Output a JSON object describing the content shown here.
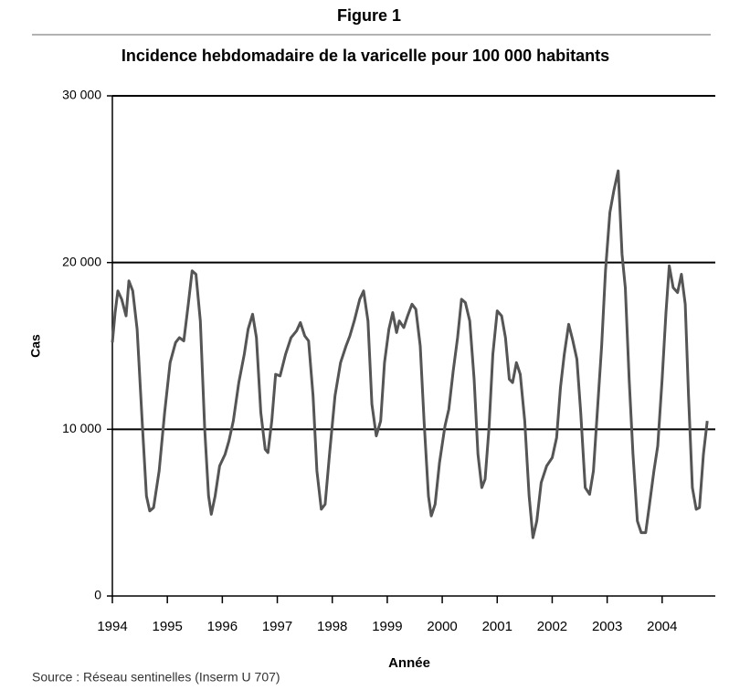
{
  "chart_data": {
    "type": "line",
    "title": "Figure 1",
    "subtitle": "Incidence hebdomadaire de la varicelle pour 100 000 habitants",
    "xlabel": "Année",
    "ylabel": "Cas",
    "source": "Source : Réseau sentinelles (Inserm U 707)",
    "xlim": [
      1994,
      2005
    ],
    "xticks": [
      1994,
      1995,
      1996,
      1997,
      1998,
      1999,
      2000,
      2001,
      2002,
      2003,
      2004
    ],
    "ylim": [
      0,
      30000
    ],
    "yticks": [
      0,
      {
        "value": 10000,
        "label": "10 000"
      },
      {
        "value": 20000,
        "label": "20 000"
      },
      {
        "value": 30000,
        "label": "30 000"
      }
    ],
    "grid": true,
    "x": [
      1994.0,
      1994.05,
      1994.1,
      1994.17,
      1994.25,
      1994.3,
      1994.37,
      1994.45,
      1994.55,
      1994.62,
      1994.68,
      1994.75,
      1994.85,
      1994.95,
      1995.05,
      1995.15,
      1995.22,
      1995.3,
      1995.38,
      1995.45,
      1995.52,
      1995.6,
      1995.68,
      1995.75,
      1995.8,
      1995.87,
      1995.95,
      1996.05,
      1996.12,
      1996.2,
      1996.3,
      1996.4,
      1996.47,
      1996.55,
      1996.62,
      1996.7,
      1996.78,
      1996.83,
      1996.9,
      1996.97,
      1997.05,
      1997.15,
      1997.25,
      1997.35,
      1997.42,
      1997.5,
      1997.57,
      1997.65,
      1997.72,
      1997.8,
      1997.87,
      1997.95,
      1998.05,
      1998.15,
      1998.25,
      1998.32,
      1998.4,
      1998.5,
      1998.57,
      1998.65,
      1998.72,
      1998.8,
      1998.88,
      1998.95,
      1999.03,
      1999.1,
      1999.17,
      1999.22,
      1999.3,
      1999.37,
      1999.45,
      1999.52,
      1999.6,
      1999.67,
      1999.75,
      1999.8,
      1999.87,
      1999.95,
      2000.05,
      2000.12,
      2000.2,
      2000.28,
      2000.35,
      2000.42,
      2000.5,
      2000.58,
      2000.65,
      2000.72,
      2000.78,
      2000.85,
      2000.92,
      2001.0,
      2001.08,
      2001.15,
      2001.22,
      2001.28,
      2001.35,
      2001.42,
      2001.5,
      2001.58,
      2001.65,
      2001.72,
      2001.8,
      2001.9,
      2002.0,
      2002.08,
      2002.15,
      2002.22,
      2002.3,
      2002.37,
      2002.45,
      2002.52,
      2002.6,
      2002.68,
      2002.75,
      2002.82,
      2002.9,
      2002.97,
      2003.05,
      2003.12,
      2003.2,
      2003.27,
      2003.33,
      2003.4,
      2003.47,
      2003.55,
      2003.62,
      2003.7,
      2003.77,
      2003.85,
      2003.92,
      2004.0,
      2004.07,
      2004.13,
      2004.2,
      2004.28,
      2004.35,
      2004.42,
      2004.48,
      2004.55,
      2004.62,
      2004.68,
      2004.75,
      2004.82
    ],
    "series": [
      {
        "name": "Cas",
        "color": "#555555",
        "values": [
          15200,
          17000,
          18300,
          17800,
          16800,
          18900,
          18300,
          16000,
          10000,
          6000,
          5100,
          5300,
          7500,
          11000,
          14000,
          15200,
          15500,
          15300,
          17500,
          19500,
          19300,
          16500,
          10000,
          6000,
          4900,
          6000,
          7800,
          8500,
          9300,
          10500,
          12800,
          14500,
          16000,
          16900,
          15500,
          11000,
          8800,
          8600,
          10500,
          13300,
          13200,
          14500,
          15500,
          15900,
          16400,
          15600,
          15300,
          12000,
          7500,
          5200,
          5500,
          8500,
          12000,
          14000,
          15000,
          15600,
          16500,
          17800,
          18300,
          16500,
          11500,
          9600,
          10500,
          14000,
          16000,
          17000,
          15800,
          16500,
          16100,
          16800,
          17500,
          17200,
          15000,
          10500,
          6000,
          4800,
          5500,
          8000,
          10200,
          11200,
          13500,
          15500,
          17800,
          17600,
          16500,
          13000,
          8500,
          6500,
          7000,
          10000,
          14500,
          17100,
          16800,
          15500,
          13000,
          12800,
          14000,
          13300,
          10500,
          6000,
          3500,
          4500,
          6800,
          7800,
          8300,
          9500,
          12500,
          14500,
          16300,
          15400,
          14200,
          11000,
          6500,
          6100,
          7500,
          11000,
          15000,
          19500,
          23000,
          24300,
          25500,
          20500,
          18500,
          13000,
          8500,
          4500,
          3800,
          3800,
          5500,
          7500,
          9000,
          13000,
          17000,
          19800,
          18500,
          18200,
          19300,
          17500,
          12000,
          6500,
          5200,
          5300,
          8500,
          10500
        ]
      }
    ]
  }
}
